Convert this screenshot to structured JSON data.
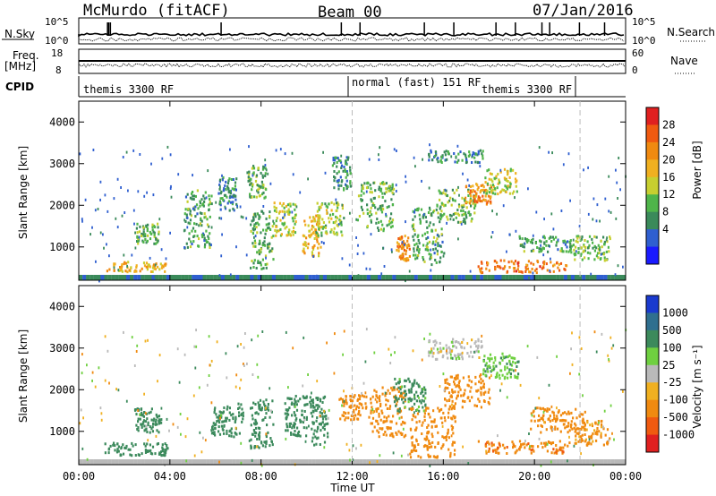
{
  "header": {
    "station": "McMurdo (fitACF)",
    "beam": "Beam 00",
    "date": "07/Jan/2016"
  },
  "status_panels": {
    "nsky_label": "N.Sky",
    "nsearch_label": "N.Search",
    "freq_label_1": "Freq.",
    "freq_label_2": "[MHz]",
    "nave_label": "Nave",
    "cpid_label": "CPID",
    "nsky_ticks": [
      "10^5",
      "10^0"
    ],
    "nsearch_ticks": [
      "10^5",
      "10^0"
    ],
    "freq_ticks": [
      "18",
      "8"
    ],
    "nave_ticks": [
      "60",
      "0"
    ],
    "cpid_segments": [
      "themis 3300 RF",
      "normal (fast) 151 RF",
      "themis 3300 RF"
    ]
  },
  "chart_data": [
    {
      "type": "heatmap",
      "name": "power",
      "ylabel": "Slant Range [km]",
      "xlabel": "",
      "x_ticks": [
        "00:00",
        "04:00",
        "08:00",
        "12:00",
        "16:00",
        "20:00",
        "00:00"
      ],
      "y_ticks": [
        "1000",
        "2000",
        "3000",
        "4000"
      ],
      "ylim": [
        200,
        4500
      ],
      "xlim_hours": [
        0,
        24
      ],
      "colorbar": {
        "label": "Power [dB]",
        "ticks": [
          "4",
          "8",
          "12",
          "16",
          "20",
          "24",
          "28"
        ],
        "colors": [
          "#1a1aff",
          "#2f5fd0",
          "#3a8a5a",
          "#4fb54a",
          "#c7cf30",
          "#f0b020",
          "#f08a10",
          "#f05a10",
          "#e02020"
        ]
      },
      "blobs": [
        {
          "t": 2.5,
          "r": 550,
          "dt": 1.3,
          "dr": 120,
          "v": 22
        },
        {
          "t": 3.0,
          "r": 1350,
          "dt": 0.5,
          "dr": 250,
          "v": 14
        },
        {
          "t": 5.2,
          "r": 1700,
          "dt": 0.6,
          "dr": 700,
          "v": 12
        },
        {
          "t": 6.5,
          "r": 2300,
          "dt": 0.4,
          "dr": 400,
          "v": 10
        },
        {
          "t": 7.8,
          "r": 2600,
          "dt": 0.4,
          "dr": 400,
          "v": 14
        },
        {
          "t": 8.0,
          "r": 1200,
          "dt": 0.5,
          "dr": 700,
          "v": 13
        },
        {
          "t": 9.0,
          "r": 1700,
          "dt": 0.5,
          "dr": 400,
          "v": 18
        },
        {
          "t": 10.2,
          "r": 1300,
          "dt": 0.4,
          "dr": 500,
          "v": 22
        },
        {
          "t": 11.0,
          "r": 1700,
          "dt": 0.6,
          "dr": 400,
          "v": 16
        },
        {
          "t": 11.5,
          "r": 2800,
          "dt": 0.4,
          "dr": 400,
          "v": 10
        },
        {
          "t": 13.0,
          "r": 2000,
          "dt": 0.8,
          "dr": 600,
          "v": 14
        },
        {
          "t": 14.2,
          "r": 1000,
          "dt": 0.3,
          "dr": 300,
          "v": 26
        },
        {
          "t": 15.3,
          "r": 1300,
          "dt": 0.7,
          "dr": 700,
          "v": 12
        },
        {
          "t": 16.5,
          "r": 2000,
          "dt": 0.9,
          "dr": 400,
          "v": 14
        },
        {
          "t": 17.5,
          "r": 2300,
          "dt": 0.6,
          "dr": 250,
          "v": 26
        },
        {
          "t": 18.5,
          "r": 2600,
          "dt": 0.7,
          "dr": 300,
          "v": 18
        },
        {
          "t": 16.5,
          "r": 3200,
          "dt": 1.2,
          "dr": 150,
          "v": 10
        },
        {
          "t": 19.5,
          "r": 560,
          "dt": 2.0,
          "dr": 150,
          "v": 28
        },
        {
          "t": 20.5,
          "r": 1100,
          "dt": 1.2,
          "dr": 200,
          "v": 12
        },
        {
          "t": 22.5,
          "r": 1000,
          "dt": 0.8,
          "dr": 300,
          "v": 14
        }
      ]
    },
    {
      "type": "heatmap",
      "name": "velocity",
      "ylabel": "Slant Range [km]",
      "xlabel": "Time UT",
      "x_ticks": [
        "00:00",
        "04:00",
        "08:00",
        "12:00",
        "16:00",
        "20:00",
        "00:00"
      ],
      "y_ticks": [
        "1000",
        "2000",
        "3000",
        "4000"
      ],
      "ylim": [
        200,
        4500
      ],
      "xlim_hours": [
        0,
        24
      ],
      "colorbar": {
        "label": "Velocity [m s⁻¹]",
        "ticks": [
          "1000",
          "500",
          "100",
          "25",
          "-25",
          "-100",
          "-500",
          "-1000"
        ],
        "colors": [
          "#1a3acf",
          "#2f6f8f",
          "#3c8a5c",
          "#6fd040",
          "#b9b9b9",
          "#f0b020",
          "#f08a10",
          "#f05a10",
          "#e02020"
        ]
      },
      "blobs": [
        {
          "t": 2.5,
          "r": 600,
          "dt": 1.4,
          "dr": 150,
          "v": 200
        },
        {
          "t": 3.0,
          "r": 1300,
          "dt": 0.6,
          "dr": 300,
          "v": 250
        },
        {
          "t": 6.5,
          "r": 1300,
          "dt": 0.7,
          "dr": 400,
          "v": 250
        },
        {
          "t": 8.0,
          "r": 1200,
          "dt": 0.5,
          "dr": 600,
          "v": 300
        },
        {
          "t": 9.5,
          "r": 1400,
          "dt": 0.5,
          "dr": 500,
          "v": 300
        },
        {
          "t": 10.5,
          "r": 1300,
          "dt": 0.4,
          "dr": 600,
          "v": 300
        },
        {
          "t": 12.0,
          "r": 1600,
          "dt": 0.6,
          "dr": 300,
          "v": -200
        },
        {
          "t": 13.5,
          "r": 1500,
          "dt": 0.8,
          "dr": 600,
          "v": -300
        },
        {
          "t": 14.5,
          "r": 1900,
          "dt": 0.7,
          "dr": 400,
          "v": 150
        },
        {
          "t": 15.5,
          "r": 1000,
          "dt": 1.0,
          "dr": 600,
          "v": -250
        },
        {
          "t": 17.0,
          "r": 2000,
          "dt": 1.0,
          "dr": 400,
          "v": -200
        },
        {
          "t": 18.5,
          "r": 2600,
          "dt": 0.8,
          "dr": 300,
          "v": 80
        },
        {
          "t": 16.5,
          "r": 3000,
          "dt": 1.2,
          "dr": 250,
          "v": 0
        },
        {
          "t": 19.5,
          "r": 650,
          "dt": 2.0,
          "dr": 150,
          "v": -400
        },
        {
          "t": 21.0,
          "r": 1300,
          "dt": 1.2,
          "dr": 300,
          "v": -200
        },
        {
          "t": 22.5,
          "r": 1000,
          "dt": 0.8,
          "dr": 300,
          "v": -150
        }
      ]
    }
  ]
}
